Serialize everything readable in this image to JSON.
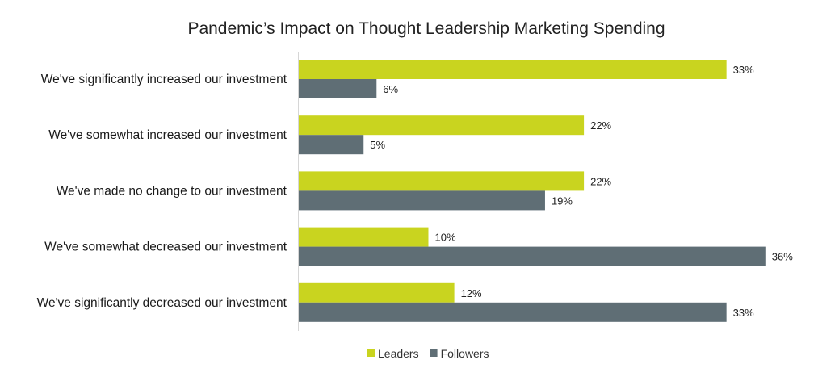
{
  "chart_data": {
    "type": "bar",
    "orientation": "horizontal",
    "title": "Pandemic’s Impact on Thought Leadership Marketing Spending",
    "categories": [
      "We've significantly increased our investment",
      "We've somewhat increased our investment",
      "We've made no change to our investment",
      "We've somewhat decreased our investment",
      "We've significantly decreased our investment"
    ],
    "series": [
      {
        "name": "Leaders",
        "color": "#c9d41f",
        "values": [
          33,
          22,
          22,
          10,
          12
        ]
      },
      {
        "name": "Followers",
        "color": "#5f6e75",
        "values": [
          6,
          5,
          19,
          36,
          33
        ]
      }
    ],
    "value_suffix": "%",
    "xlim": [
      0,
      36
    ],
    "grid": false,
    "legend_position": "bottom"
  }
}
